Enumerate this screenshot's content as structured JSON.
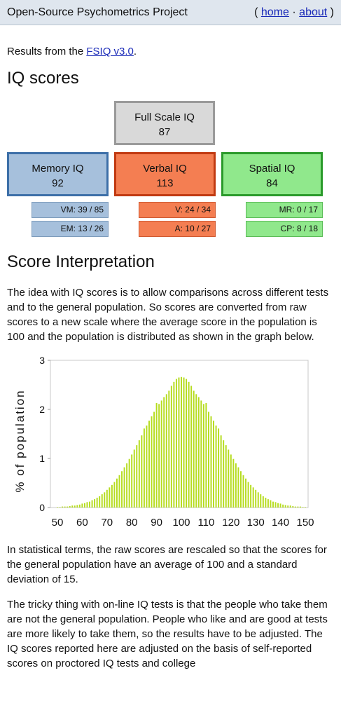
{
  "header": {
    "title": "Open-Source Psychometrics Project",
    "open_paren": "(",
    "home": "home",
    "separator": "·",
    "about": "about",
    "close_paren": ")"
  },
  "intro": {
    "prefix": "Results from the ",
    "link": "FSIQ v3.0",
    "suffix": "."
  },
  "iq_heading": "IQ scores",
  "scores": {
    "full_scale": {
      "label": "Full Scale IQ",
      "value": "87"
    },
    "memory": {
      "label": "Memory IQ",
      "value": "92"
    },
    "verbal": {
      "label": "Verbal IQ",
      "value": "113"
    },
    "spatial": {
      "label": "Spatial IQ",
      "value": "84"
    },
    "subscores": {
      "vm": "VM: 39 / 85",
      "em": "EM: 13 / 26",
      "v": "V: 24 / 34",
      "a": "A: 10 / 27",
      "mr": "MR: 0 / 17",
      "cp": "CP: 8 / 18"
    }
  },
  "interp_heading": "Score Interpretation",
  "paragraphs": {
    "p1": "The idea with IQ scores is to allow comparisons across different tests and to the general population. So scores are converted from raw scores to a new scale where the average score in the population is 100 and the population is distributed as shown in the graph below.",
    "p2": "In statistical terms, the raw scores are rescaled so that the scores for the general population have an average of 100 and a standard deviation of 15.",
    "p3": "The tricky thing with on-line IQ tests is that the people who take them are not the general population. People who like and are good at tests are more likely to take them, so the results have to be adjusted. The IQ scores reported here are adjusted on the basis of self-reported scores on proctored IQ tests and college"
  },
  "colors": {
    "bar": "#b5dc1e",
    "accent_link": "#1a2ab8"
  },
  "chart_data": {
    "type": "bar",
    "ylabel": "% of population",
    "xlabel": "",
    "xlim": [
      50,
      150
    ],
    "ylim": [
      0,
      3
    ],
    "x_ticks": [
      "50",
      "60",
      "70",
      "80",
      "90",
      "100",
      "110",
      "120",
      "130",
      "140",
      "150"
    ],
    "y_ticks": [
      "0",
      "1",
      "2",
      "3"
    ],
    "distribution": {
      "mean": 100,
      "sd": 15
    },
    "x": [
      50,
      51,
      52,
      53,
      54,
      55,
      56,
      57,
      58,
      59,
      60,
      61,
      62,
      63,
      64,
      65,
      66,
      67,
      68,
      69,
      70,
      71,
      72,
      73,
      74,
      75,
      76,
      77,
      78,
      79,
      80,
      81,
      82,
      83,
      84,
      85,
      86,
      87,
      88,
      89,
      90,
      91,
      92,
      93,
      94,
      95,
      96,
      97,
      98,
      99,
      100,
      101,
      102,
      103,
      104,
      105,
      106,
      107,
      108,
      109,
      110,
      111,
      112,
      113,
      114,
      115,
      116,
      117,
      118,
      119,
      120,
      121,
      122,
      123,
      124,
      125,
      126,
      127,
      128,
      129,
      130,
      131,
      132,
      133,
      134,
      135,
      136,
      137,
      138,
      139,
      140,
      141,
      142,
      143,
      144,
      145,
      146,
      147,
      148,
      149,
      150
    ],
    "values": [
      0.01,
      0.01,
      0.02,
      0.02,
      0.02,
      0.03,
      0.04,
      0.04,
      0.05,
      0.06,
      0.08,
      0.09,
      0.11,
      0.12,
      0.15,
      0.17,
      0.2,
      0.23,
      0.27,
      0.31,
      0.36,
      0.41,
      0.46,
      0.52,
      0.59,
      0.66,
      0.74,
      0.82,
      0.9,
      0.99,
      1.08,
      1.18,
      1.27,
      1.37,
      1.47,
      1.61,
      1.67,
      1.77,
      1.86,
      1.95,
      2.13,
      2.11,
      2.18,
      2.25,
      2.31,
      2.38,
      2.48,
      2.56,
      2.62,
      2.65,
      2.66,
      2.65,
      2.62,
      2.56,
      2.48,
      2.38,
      2.31,
      2.25,
      2.18,
      2.11,
      2.13,
      1.95,
      1.86,
      1.77,
      1.67,
      1.61,
      1.47,
      1.37,
      1.27,
      1.18,
      1.08,
      0.99,
      0.9,
      0.82,
      0.74,
      0.66,
      0.59,
      0.52,
      0.46,
      0.41,
      0.36,
      0.31,
      0.27,
      0.23,
      0.2,
      0.17,
      0.15,
      0.12,
      0.11,
      0.09,
      0.08,
      0.06,
      0.05,
      0.04,
      0.04,
      0.03,
      0.02,
      0.02,
      0.02,
      0.01,
      0.01
    ]
  }
}
